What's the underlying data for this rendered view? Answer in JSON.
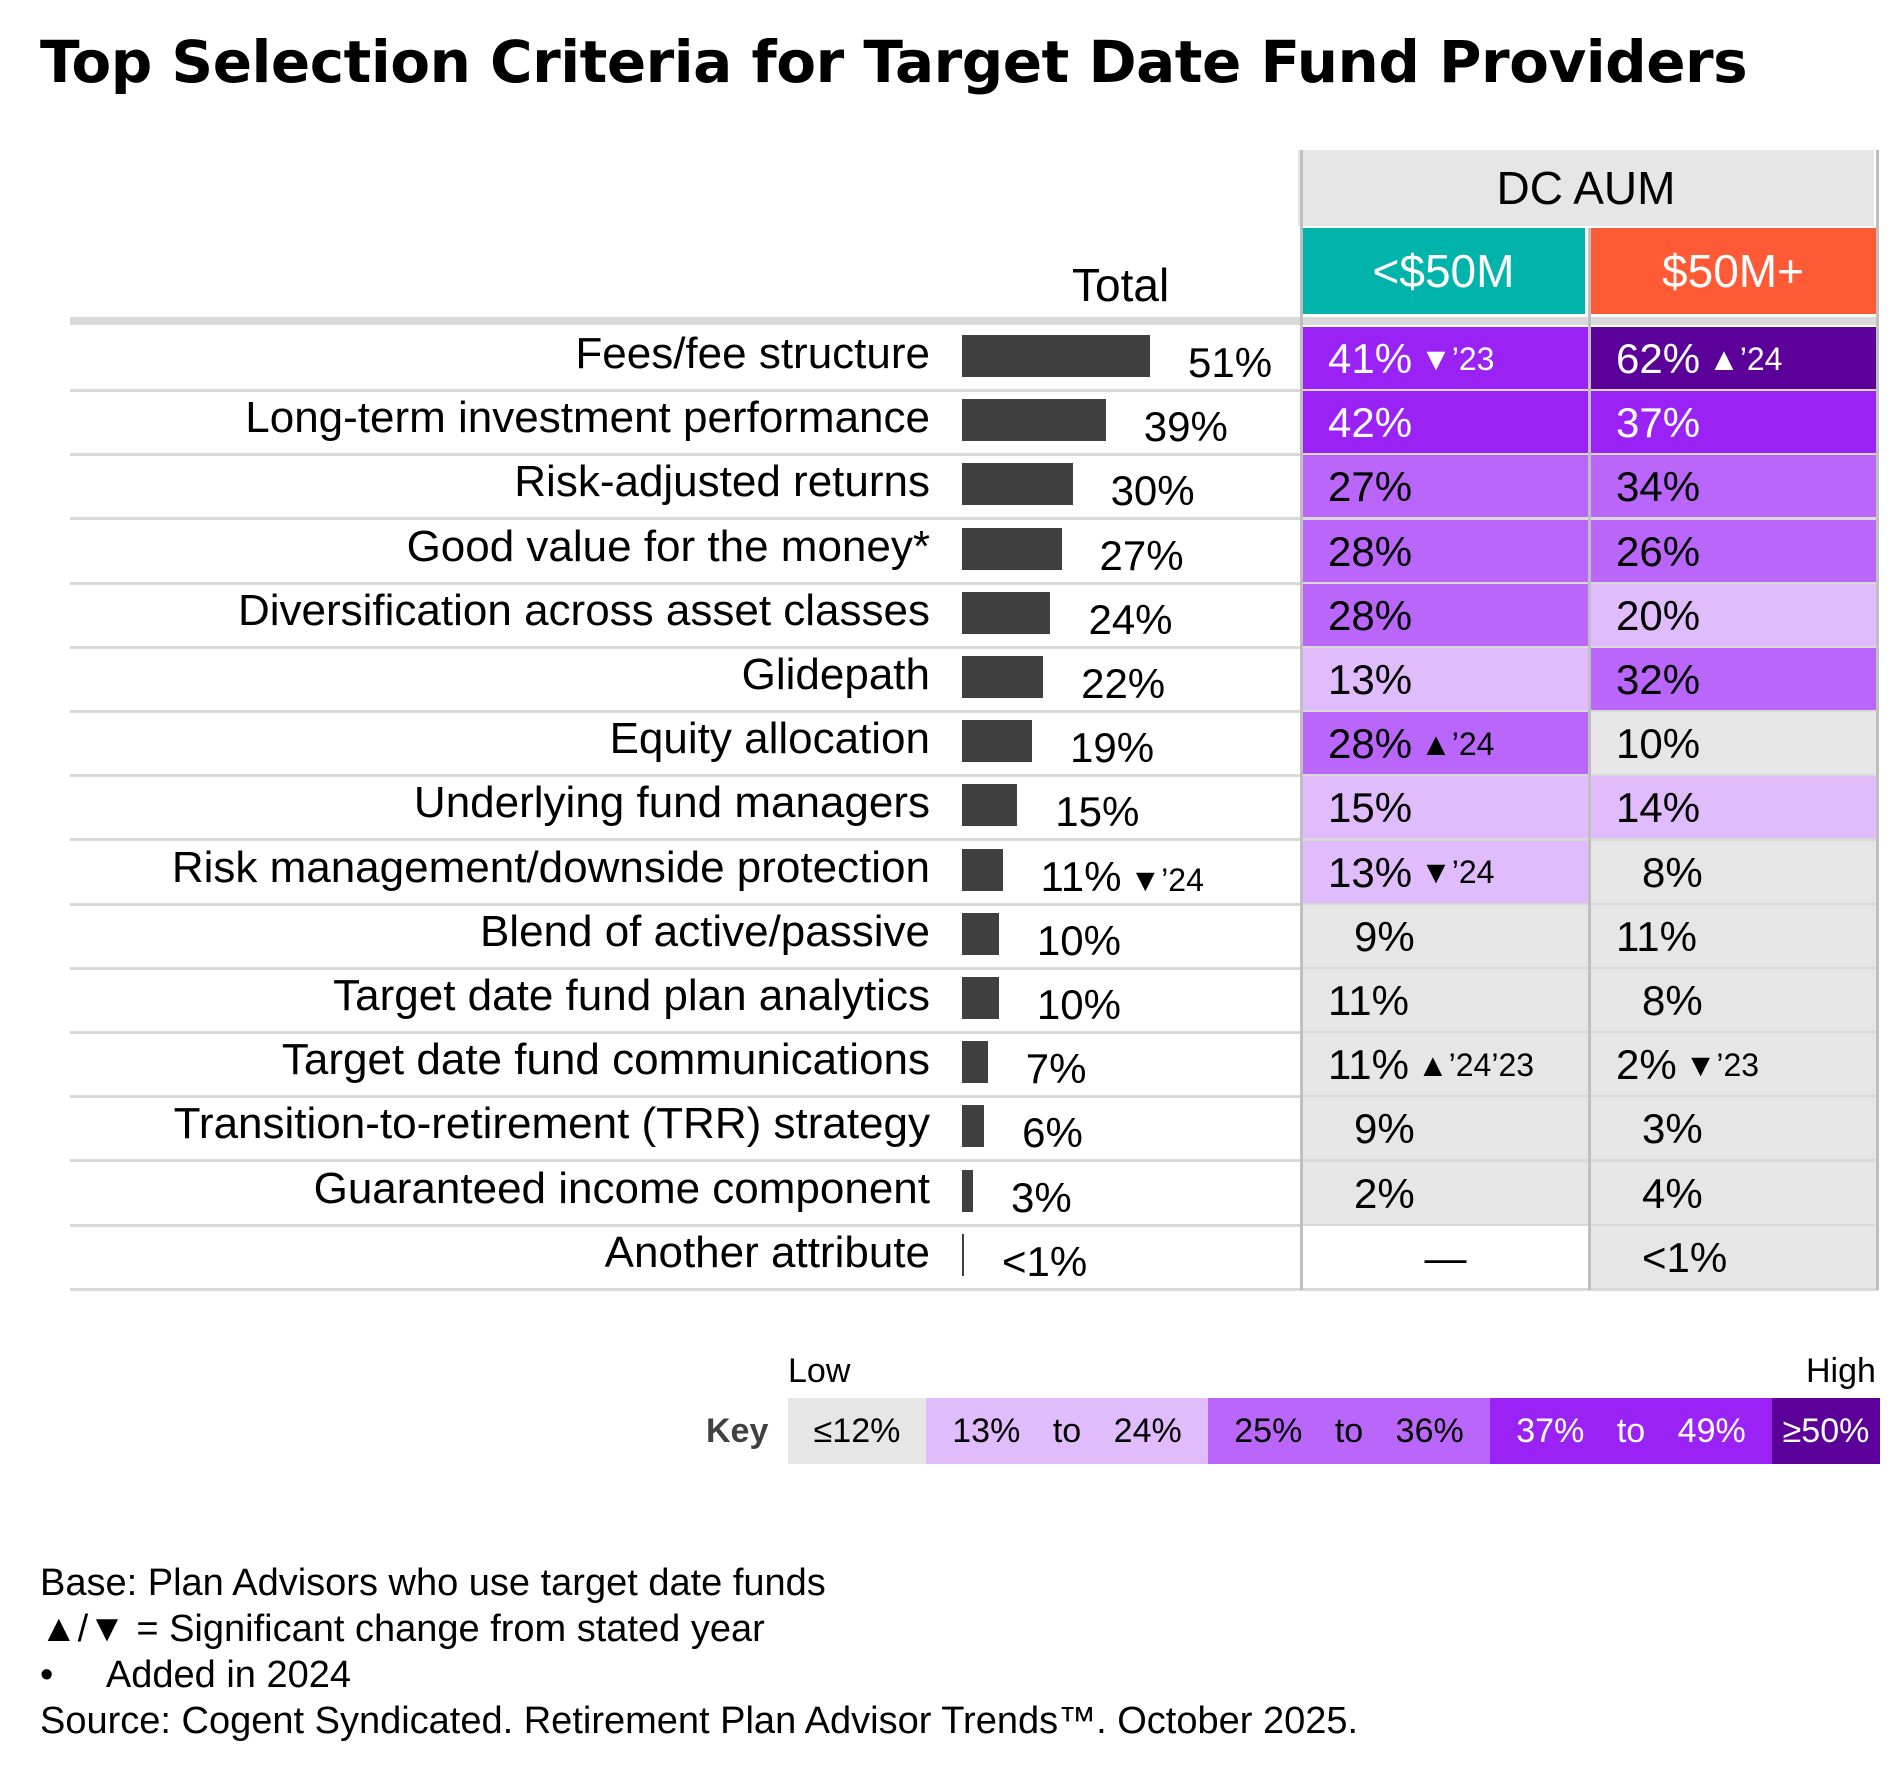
{
  "title": "Top Selection Criteria for Target Date Fund Providers",
  "header": {
    "dc_aum": "DC AUM",
    "total": "Total",
    "seg_lt": "<$50M",
    "seg_ge": "$50M+"
  },
  "colors": {
    "scale_le12": "#e6e6e6",
    "scale_13_24": "#e0bcfc",
    "scale_25_36": "#bb66fb",
    "scale_37_49": "#9a22f5",
    "scale_ge50": "#5b0098",
    "seg_lt_header": "#00b4ac",
    "seg_ge_header": "#ff5a36",
    "bar": "#404040"
  },
  "chart_data": {
    "type": "table",
    "bar_series": "Total",
    "rows": [
      {
        "label": "Fees/fee structure",
        "total": 51,
        "total_text": "51%",
        "total_sig": "",
        "lt": {
          "text": "41%",
          "sig": "▼’23",
          "value": 41
        },
        "ge": {
          "text": "62%",
          "sig": "▲’24",
          "value": 62
        }
      },
      {
        "label": "Long-term investment performance",
        "total": 39,
        "total_text": "39%",
        "total_sig": "",
        "lt": {
          "text": "42%",
          "sig": "",
          "value": 42
        },
        "ge": {
          "text": "37%",
          "sig": "",
          "value": 37
        }
      },
      {
        "label": "Risk-adjusted returns",
        "total": 30,
        "total_text": "30%",
        "total_sig": "",
        "lt": {
          "text": "27%",
          "sig": "",
          "value": 27
        },
        "ge": {
          "text": "34%",
          "sig": "",
          "value": 34
        }
      },
      {
        "label": "Good value for the money*",
        "total": 27,
        "total_text": "27%",
        "total_sig": "",
        "lt": {
          "text": "28%",
          "sig": "",
          "value": 28
        },
        "ge": {
          "text": "26%",
          "sig": "",
          "value": 26
        }
      },
      {
        "label": "Diversification across asset classes",
        "total": 24,
        "total_text": "24%",
        "total_sig": "",
        "lt": {
          "text": "28%",
          "sig": "",
          "value": 28
        },
        "ge": {
          "text": "20%",
          "sig": "",
          "value": 20
        }
      },
      {
        "label": "Glidepath",
        "total": 22,
        "total_text": "22%",
        "total_sig": "",
        "lt": {
          "text": "13%",
          "sig": "",
          "value": 13
        },
        "ge": {
          "text": "32%",
          "sig": "",
          "value": 32
        }
      },
      {
        "label": "Equity allocation",
        "total": 19,
        "total_text": "19%",
        "total_sig": "",
        "lt": {
          "text": "28%",
          "sig": "▲’24",
          "value": 28
        },
        "ge": {
          "text": "10%",
          "sig": "",
          "value": 10
        }
      },
      {
        "label": "Underlying fund managers",
        "total": 15,
        "total_text": "15%",
        "total_sig": "",
        "lt": {
          "text": "15%",
          "sig": "",
          "value": 15
        },
        "ge": {
          "text": "14%",
          "sig": "",
          "value": 14
        }
      },
      {
        "label": "Risk management/downside protection",
        "total": 11,
        "total_text": "11%",
        "total_sig": "▼’24",
        "lt": {
          "text": "13%",
          "sig": "▼’24",
          "value": 13
        },
        "ge": {
          "text": "8%",
          "sig": "",
          "value": 8
        }
      },
      {
        "label": "Blend of active/passive",
        "total": 10,
        "total_text": "10%",
        "total_sig": "",
        "lt": {
          "text": "9%",
          "sig": "",
          "value": 9
        },
        "ge": {
          "text": "11%",
          "sig": "",
          "value": 11
        }
      },
      {
        "label": "Target date fund plan analytics",
        "total": 10,
        "total_text": "10%",
        "total_sig": "",
        "lt": {
          "text": "11%",
          "sig": "",
          "value": 11
        },
        "ge": {
          "text": "8%",
          "sig": "",
          "value": 8
        }
      },
      {
        "label": "Target date fund communications",
        "total": 7,
        "total_text": "7%",
        "total_sig": "",
        "lt": {
          "text": "11%",
          "sig": "▲’24’23",
          "value": 11
        },
        "ge": {
          "text": "2%",
          "sig": "▼’23",
          "value": 2
        }
      },
      {
        "label": "Transition-to-retirement (TRR) strategy",
        "total": 6,
        "total_text": "6%",
        "total_sig": "",
        "lt": {
          "text": "9%",
          "sig": "",
          "value": 9
        },
        "ge": {
          "text": "3%",
          "sig": "",
          "value": 3
        }
      },
      {
        "label": "Guaranteed income component",
        "total": 3,
        "total_text": "3%",
        "total_sig": "",
        "lt": {
          "text": "2%",
          "sig": "",
          "value": 2
        },
        "ge": {
          "text": "4%",
          "sig": "",
          "value": 4
        }
      },
      {
        "label": "Another attribute",
        "total": 0.5,
        "total_text": "<1%",
        "total_sig": "",
        "lt": {
          "text": "—",
          "sig": "",
          "value": null
        },
        "ge": {
          "text": "<1%",
          "sig": "",
          "value": 0.5
        }
      }
    ]
  },
  "key": {
    "title": "Key",
    "low": "Low",
    "high": "High",
    "bins": [
      {
        "parts": [
          "≤12%"
        ],
        "color_key": "scale_le12",
        "text_color": "#000000"
      },
      {
        "parts": [
          "13%",
          "to",
          "24%"
        ],
        "color_key": "scale_13_24",
        "text_color": "#000000"
      },
      {
        "parts": [
          "25%",
          "to",
          "36%"
        ],
        "color_key": "scale_25_36",
        "text_color": "#000000"
      },
      {
        "parts": [
          "37%",
          "to",
          "49%"
        ],
        "color_key": "scale_37_49",
        "text_color": "#ffffff"
      },
      {
        "parts": [
          "≥50%"
        ],
        "color_key": "scale_ge50",
        "text_color": "#ffffff"
      }
    ]
  },
  "footnotes": {
    "base": "Base: Plan Advisors who use target date funds",
    "sig": "▲/▼ = Significant change from stated year",
    "added_bullet": "•",
    "added": "Added in 2024",
    "source": "Source: Cogent Syndicated. Retirement Plan Advisor Trends™. October 2025."
  }
}
